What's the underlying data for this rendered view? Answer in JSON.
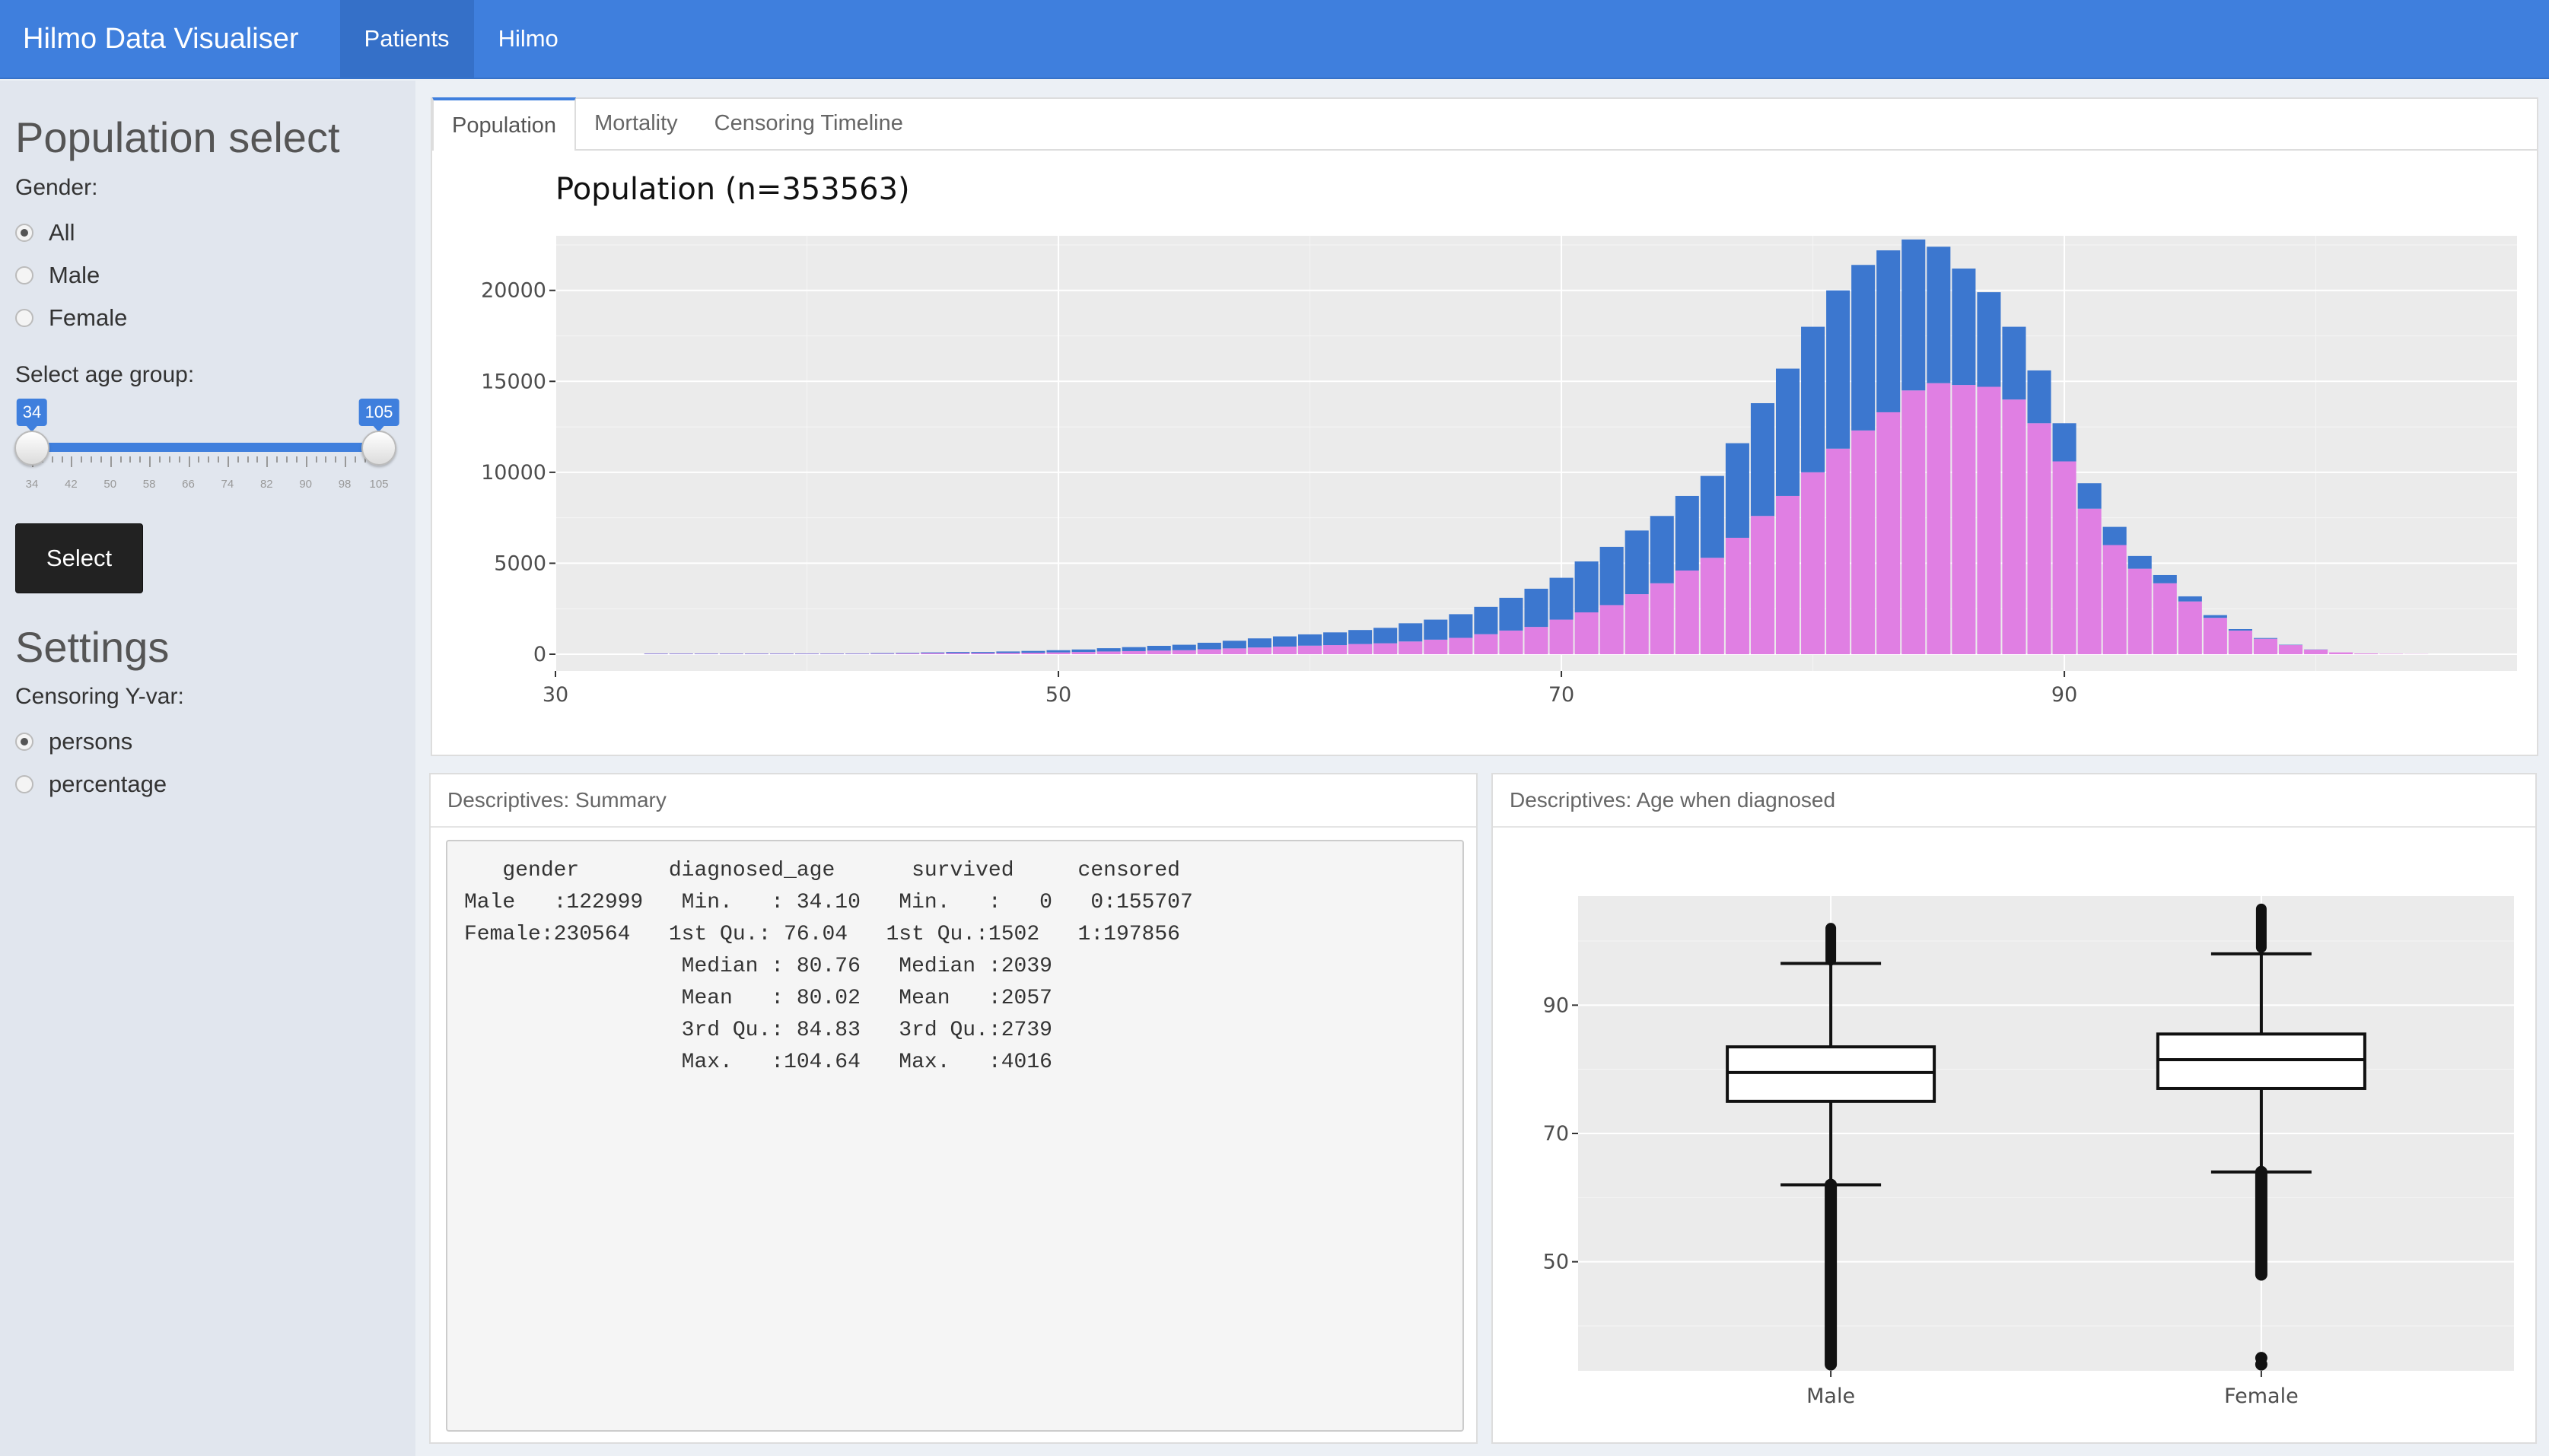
{
  "navbar": {
    "brand": "Hilmo Data Visualiser",
    "tabs": [
      {
        "label": "Patients",
        "active": true
      },
      {
        "label": "Hilmo",
        "active": false
      }
    ],
    "bg_color": "#3f7fdd"
  },
  "sidebar": {
    "population_heading": "Population select",
    "gender_label": "Gender:",
    "gender_options": [
      {
        "label": "All",
        "checked": true
      },
      {
        "label": "Male",
        "checked": false
      },
      {
        "label": "Female",
        "checked": false
      }
    ],
    "age_label": "Select age group:",
    "age_slider": {
      "min": 34,
      "max": 105,
      "selected_low": "34",
      "selected_high": "105",
      "tick_labels": [
        "34",
        "42",
        "50",
        "58",
        "66",
        "74",
        "82",
        "90",
        "98",
        "105"
      ]
    },
    "select_button": "Select",
    "settings_heading": "Settings",
    "censoring_label": "Censoring Y-var:",
    "censoring_options": [
      {
        "label": "persons",
        "checked": true
      },
      {
        "label": "percentage",
        "checked": false
      }
    ]
  },
  "main": {
    "tabs": [
      {
        "label": "Population",
        "active": true
      },
      {
        "label": "Mortality",
        "active": false
      },
      {
        "label": "Censoring Timeline",
        "active": false
      }
    ],
    "summary_title": "Descriptives: Summary",
    "summary_lines": [
      "   gender       diagnosed_age      survived     censored",
      "Male   :122999   Min.   : 34.10   Min.   :   0   0:155707",
      "Female:230564   1st Qu.: 76.04   1st Qu.:1502   1:197856",
      "                 Median : 80.76   Median :2039",
      "                 Mean   : 80.02   Mean   :2057",
      "                 3rd Qu.: 84.83   3rd Qu.:2739",
      "                 Max.   :104.64   Max.   :4016"
    ],
    "boxplot_title": "Descriptives: Age when diagnosed"
  },
  "chart_data": [
    {
      "type": "bar",
      "title": "Population (n=353563)",
      "stacked": true,
      "bin_width": 1,
      "xlim": [
        30,
        108
      ],
      "ylim": [
        0,
        23000
      ],
      "x_ticks": [
        30,
        50,
        70,
        90
      ],
      "y_ticks": [
        0,
        5000,
        10000,
        15000,
        20000
      ],
      "x_tick_labels": [
        "30",
        "50",
        "70",
        "90"
      ],
      "y_tick_labels": [
        "0",
        "5000",
        "10000",
        "15000",
        "20000"
      ],
      "grid": true,
      "colors": {
        "female": "#e07fe3",
        "male": "#3c77cf",
        "panel": "#ebebeb"
      },
      "x": [
        34,
        35,
        36,
        37,
        38,
        39,
        40,
        41,
        42,
        43,
        44,
        45,
        46,
        47,
        48,
        49,
        50,
        51,
        52,
        53,
        54,
        55,
        56,
        57,
        58,
        59,
        60,
        61,
        62,
        63,
        64,
        65,
        66,
        67,
        68,
        69,
        70,
        71,
        72,
        73,
        74,
        75,
        76,
        77,
        78,
        79,
        80,
        81,
        82,
        83,
        84,
        85,
        86,
        87,
        88,
        89,
        90,
        91,
        92,
        93,
        94,
        95,
        96,
        97,
        98,
        99,
        100,
        101,
        102,
        103,
        104
      ],
      "series": [
        {
          "values": [
            20,
            20,
            20,
            20,
            20,
            20,
            20,
            20,
            20,
            30,
            40,
            60,
            60,
            60,
            70,
            80,
            100,
            120,
            150,
            170,
            200,
            220,
            270,
            320,
            370,
            420,
            470,
            500,
            560,
            600,
            700,
            800,
            900,
            1100,
            1300,
            1500,
            1900,
            2300,
            2700,
            3300,
            3900,
            4600,
            5300,
            6400,
            7600,
            8700,
            10000,
            11300,
            12300,
            13300,
            14500,
            14900,
            14800,
            14700,
            14000,
            12700,
            10600,
            8000,
            6000,
            4700,
            3900,
            2900,
            2000,
            1300,
            850,
            500,
            250,
            100,
            40,
            20,
            10
          ]
        },
        {
          "values": [
            20,
            20,
            20,
            20,
            20,
            20,
            20,
            20,
            20,
            30,
            30,
            40,
            60,
            60,
            80,
            100,
            120,
            140,
            180,
            220,
            260,
            300,
            360,
            420,
            500,
            560,
            620,
            700,
            770,
            850,
            1000,
            1100,
            1300,
            1500,
            1800,
            2100,
            2300,
            2800,
            3200,
            3500,
            3700,
            4100,
            4500,
            5200,
            6200,
            7000,
            8000,
            8700,
            9100,
            8900,
            8300,
            7500,
            6400,
            5200,
            4000,
            2900,
            2100,
            1400,
            1000,
            700,
            450,
            280,
            150,
            80,
            40,
            20,
            10,
            0,
            0,
            0,
            0
          ]
        }
      ]
    },
    {
      "type": "box",
      "categories": [
        "Male",
        "Female"
      ],
      "ylim": [
        33,
        107
      ],
      "y_ticks": [
        50,
        70,
        90
      ],
      "y_tick_labels": [
        "50",
        "70",
        "90"
      ],
      "grid": true,
      "boxes": [
        {
          "category": "Male",
          "whisker_low": 62,
          "q1": 75,
          "median": 79.5,
          "q3": 83.5,
          "whisker_high": 96.5,
          "outlier_low_range": [
            34,
            62
          ],
          "outlier_high_range": [
            97,
            102
          ]
        },
        {
          "category": "Female",
          "whisker_low": 64,
          "q1": 77,
          "median": 81.5,
          "q3": 85.5,
          "whisker_high": 98,
          "outlier_low_range": [
            48,
            64
          ],
          "outlier_high_range": [
            99,
            105
          ],
          "outlier_extra": [
            34,
            35
          ]
        }
      ]
    }
  ]
}
